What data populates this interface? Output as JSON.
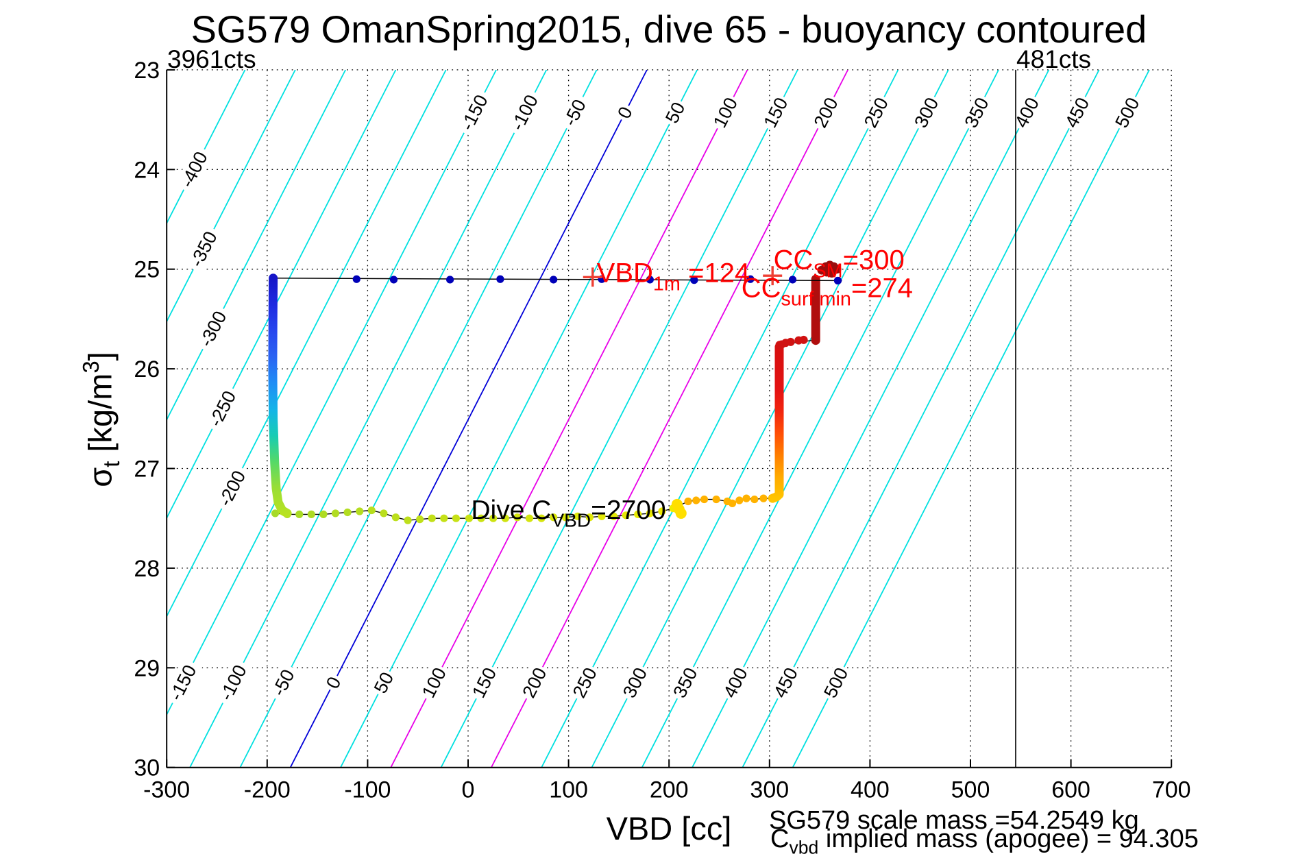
{
  "title": "SG579 OmanSpring2015, dive 65 - buoyancy contoured",
  "corner_labels": {
    "left": "3961cts",
    "right": "481cts"
  },
  "axes": {
    "x": {
      "label": "VBD [cc]",
      "ticks": [
        -300,
        -200,
        -100,
        0,
        100,
        200,
        300,
        400,
        500,
        600,
        700
      ]
    },
    "y": {
      "label_parts": [
        {
          "t": "σ"
        },
        {
          "t": "t",
          "sub": true
        },
        {
          "t": " [kg/m"
        },
        {
          "t": "3",
          "sup": true
        },
        {
          "t": "]"
        }
      ],
      "ticks": [
        23,
        24,
        25,
        26,
        27,
        28,
        29,
        30
      ]
    }
  },
  "footer": {
    "line1_parts": [
      {
        "t": "SG579 scale mass =54.2549 kg"
      }
    ],
    "line2_parts": [
      {
        "t": "C"
      },
      {
        "t": "vbd",
        "sub": true
      },
      {
        "t": " implied mass (apogee) = 94.305"
      }
    ]
  },
  "colors": {
    "contour_cyan": "#00e0e0",
    "contour_zero": "#0000d8",
    "contour_magenta": "#e800e8",
    "grid": "#000000",
    "navy_dot": "#0000b8",
    "plus_marker": "#ee3f33",
    "red_text": "#ff0000",
    "jog_red": "#d01212",
    "dark_red_line": "#b00e0e",
    "surface_blob_red": "#9b0c0c",
    "chain_start": "#a6da28",
    "chain_end": "#eeea00",
    "blob_yellow": "#ffdf00",
    "orange_chain": "#ffb200",
    "descent_gradient": [
      "#1616c8",
      "#1e2ae0",
      "#2746ee",
      "#2a63f2",
      "#1f8df5",
      "#14b4e8",
      "#17ccb4",
      "#55d967",
      "#9ade35",
      "#b8e222"
    ],
    "climb_gradient": [
      "#ffc400",
      "#ffaa00",
      "#ff7e00",
      "#ff4e06",
      "#f2260e",
      "#e41313",
      "#dc1111",
      "#d71010"
    ]
  },
  "chart_data": {
    "type": "scatter",
    "title": "SG579 OmanSpring2015, dive 65 - buoyancy contoured",
    "xlabel": "VBD [cc]",
    "ylabel": "sigma_t [kg/m^3]",
    "xlim": [
      -300,
      700
    ],
    "ylim": [
      30,
      23
    ],
    "grid": true,
    "vline_x": 545,
    "contours": {
      "min": -400,
      "max": 500,
      "interval": 50,
      "cc_offset_at_sigma23": 178,
      "cc_per_sigma_unit": 50.7,
      "zero_value": 0,
      "magenta_values": [
        100,
        200
      ],
      "label_rows": {
        "top": {
          "sigma": 23.43,
          "values": [
            -150,
            -100,
            -50,
            0,
            50,
            100,
            150,
            200,
            250,
            300,
            350,
            400,
            450,
            500
          ]
        },
        "bottom": {
          "sigma": 29.15,
          "values": [
            -150,
            -100,
            -50,
            0,
            50,
            100,
            150,
            200,
            250,
            300,
            350,
            400,
            450,
            500
          ]
        },
        "left": {
          "values": [
            -400,
            -350,
            -300,
            -250,
            -200
          ],
          "sigmas": [
            24.0,
            24.8,
            25.6,
            26.4,
            27.2
          ]
        }
      }
    },
    "series": {
      "surface_line": [
        [
          -194,
          25.09
        ],
        [
          372,
          25.115
        ]
      ],
      "surface_dots": [
        [
          -194,
          25.09
        ],
        [
          -111,
          25.1
        ],
        [
          -74,
          25.105
        ],
        [
          -18,
          25.105
        ],
        [
          32,
          25.1
        ],
        [
          85,
          25.105
        ],
        [
          133,
          25.1
        ],
        [
          181,
          25.105
        ],
        [
          225,
          25.11
        ],
        [
          281,
          25.1
        ],
        [
          323,
          25.105
        ],
        [
          368,
          25.115
        ]
      ],
      "plus_markers": [
        [
          124,
          25.08
        ],
        [
          303,
          25.065
        ]
      ],
      "descent": [
        [
          -194,
          25.09
        ],
        [
          -194.3,
          25.5
        ],
        [
          -194.5,
          26.0
        ],
        [
          -194,
          26.5
        ],
        [
          -192.5,
          26.95
        ],
        [
          -191,
          27.2
        ],
        [
          -189,
          27.34
        ],
        [
          -185,
          27.42
        ],
        [
          -180,
          27.45
        ]
      ],
      "apogee_chain": [
        [
          -192,
          27.45
        ],
        [
          -180,
          27.46
        ],
        [
          -168,
          27.46
        ],
        [
          -156,
          27.46
        ],
        [
          -144,
          27.46
        ],
        [
          -132,
          27.45
        ],
        [
          -120,
          27.44
        ],
        [
          -108,
          27.43
        ],
        [
          -96,
          27.42
        ],
        [
          -84,
          27.45
        ],
        [
          -72,
          27.49
        ],
        [
          -60,
          27.52
        ],
        [
          -48,
          27.51
        ],
        [
          -36,
          27.5
        ],
        [
          -24,
          27.5
        ],
        [
          -12,
          27.5
        ],
        [
          1,
          27.5
        ],
        [
          13,
          27.5
        ],
        [
          25,
          27.5
        ],
        [
          37,
          27.5
        ],
        [
          49,
          27.49
        ],
        [
          61,
          27.5
        ],
        [
          73,
          27.5
        ],
        [
          85,
          27.49
        ],
        [
          97,
          27.49
        ],
        [
          109,
          27.48
        ],
        [
          121,
          27.49
        ],
        [
          133,
          27.48
        ],
        [
          145,
          27.48
        ],
        [
          157,
          27.47
        ],
        [
          169,
          27.46
        ],
        [
          181,
          27.45
        ],
        [
          193,
          27.43
        ],
        [
          204,
          27.4
        ]
      ],
      "chain_blob": [
        [
          208,
          27.36
        ],
        [
          210,
          27.41
        ],
        [
          212,
          27.45
        ]
      ],
      "chain_orange": [
        [
          219,
          27.33
        ],
        [
          227,
          27.32
        ],
        [
          235,
          27.31
        ],
        [
          247,
          27.31
        ],
        [
          258,
          27.33
        ],
        [
          263,
          27.35
        ],
        [
          270,
          27.32
        ],
        [
          277,
          27.3
        ],
        [
          285,
          27.31
        ],
        [
          294,
          27.3
        ],
        [
          303,
          27.3
        ]
      ],
      "climb": [
        [
          303,
          27.3
        ],
        [
          307,
          27.285
        ],
        [
          309.7,
          27.26
        ],
        [
          309.7,
          25.78
        ]
      ],
      "jog_line": [
        [
          310,
          25.76
        ],
        [
          346,
          25.71
        ]
      ],
      "jog_dots": [
        [
          310,
          25.76
        ],
        [
          312,
          25.755
        ],
        [
          316,
          25.74
        ],
        [
          321,
          25.73
        ],
        [
          329,
          25.715
        ],
        [
          334,
          25.71
        ]
      ],
      "climb_upper": [
        [
          346,
          25.715
        ],
        [
          346,
          25.1
        ]
      ],
      "surface_blob": [
        [
          352,
          25.01
        ],
        [
          356,
          24.975
        ],
        [
          360,
          24.96
        ],
        [
          364,
          24.975
        ],
        [
          367,
          25.0
        ],
        [
          357,
          25.03
        ],
        [
          362,
          25.04
        ]
      ],
      "end_dot": [
        368,
        25.115
      ]
    },
    "annotations": [
      {
        "id": "vbd-1m-label",
        "x": 128,
        "sigma": 25.13,
        "size": 40,
        "color": "#ff0000",
        "parts": [
          {
            "t": "VBD"
          },
          {
            "t": "1m",
            "sub": true
          },
          {
            "t": " =124"
          }
        ]
      },
      {
        "id": "cc-sm-label",
        "x": 304,
        "sigma": 25.0,
        "size": 40,
        "color": "#ff0000",
        "parts": [
          {
            "t": "CC"
          },
          {
            "t": "SM",
            "sub": true
          },
          {
            "t": "=300"
          }
        ]
      },
      {
        "id": "cc-surf-min-label",
        "x": 272,
        "sigma": 25.28,
        "size": 40,
        "color": "#ff0000",
        "parts": [
          {
            "t": "CC"
          },
          {
            "t": "surf min",
            "sub": true
          },
          {
            "t": "=274"
          }
        ]
      },
      {
        "id": "dive-cvbd-label",
        "x": 3,
        "sigma": 27.505,
        "size": 39,
        "color": "#000000",
        "parts": [
          {
            "t": "Dive C"
          },
          {
            "t": "VBD",
            "sub": true
          },
          {
            "t": "=2700"
          }
        ]
      }
    ]
  }
}
